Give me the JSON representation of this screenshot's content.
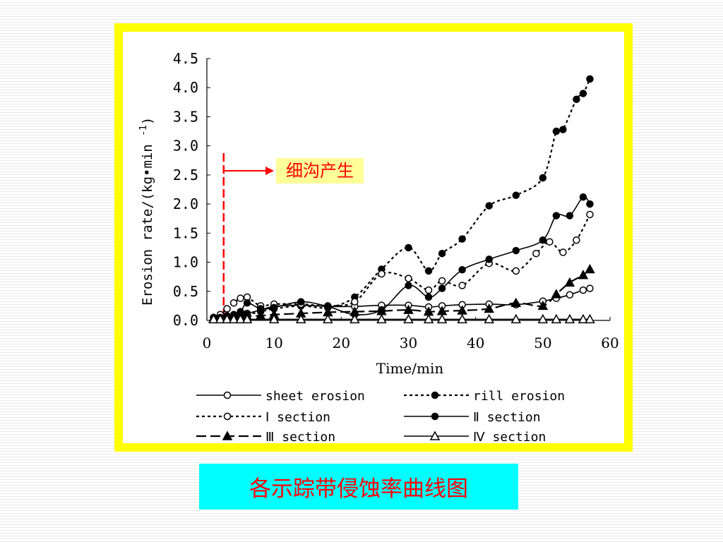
{
  "colors": {
    "frame": "#ffff00",
    "annotation": "#ff0000",
    "annotation_box": "#ffff99",
    "caption_bg": "#00ffff",
    "caption_text": "#ff0000"
  },
  "caption": "各示踪带侵蚀率曲线图",
  "chart_data": {
    "type": "line",
    "xlabel": "Time/min",
    "ylabel": "Erosion rate/(kg•min",
    "ylabel_sup": "-1",
    "ylabel_close": ")",
    "xlim": [
      0,
      60
    ],
    "ylim": [
      0,
      4.5
    ],
    "xticks": [
      "0",
      "10",
      "20",
      "30",
      "40",
      "50",
      "60"
    ],
    "yticks": [
      "0.0",
      "0.5",
      "1.0",
      "1.5",
      "2.0",
      "2.5",
      "3.0",
      "3.5",
      "4.0",
      "4.5"
    ],
    "grid": false,
    "legend_position": "bottom",
    "annotation": {
      "text": "细沟产生",
      "x": 2.5
    },
    "series": [
      {
        "name": "sheet erosion",
        "line": "solid",
        "marker": "open-circle",
        "x": [
          1,
          2,
          3,
          4,
          5,
          6,
          8,
          10,
          14,
          18,
          22,
          26,
          30,
          33,
          35,
          38,
          42,
          46,
          50,
          52,
          54,
          56,
          57
        ],
        "y": [
          0.05,
          0.05,
          0.06,
          0.08,
          0.1,
          0.12,
          0.18,
          0.24,
          0.26,
          0.24,
          0.24,
          0.26,
          0.26,
          0.23,
          0.25,
          0.27,
          0.28,
          0.27,
          0.33,
          0.38,
          0.44,
          0.52,
          0.55
        ]
      },
      {
        "name": "rill erosion",
        "line": "dotted",
        "marker": "filled-circle",
        "x": [
          1,
          2,
          3,
          4,
          5,
          6,
          8,
          10,
          14,
          18,
          22,
          26,
          30,
          33,
          35,
          38,
          42,
          46,
          50,
          52,
          53,
          55,
          56,
          57
        ],
        "y": [
          0.02,
          0.02,
          0.03,
          0.05,
          0.08,
          0.1,
          0.15,
          0.2,
          0.25,
          0.22,
          0.4,
          0.88,
          1.25,
          0.85,
          1.15,
          1.4,
          1.97,
          2.15,
          2.45,
          3.25,
          3.28,
          3.8,
          3.9,
          4.15
        ]
      },
      {
        "name": "Ⅰ section",
        "line": "dotted",
        "marker": "open-circle",
        "x": [
          1,
          2,
          3,
          4,
          5,
          6,
          8,
          10,
          14,
          18,
          22,
          26,
          30,
          33,
          35,
          38,
          42,
          46,
          49,
          51,
          53,
          55,
          57
        ],
        "y": [
          0.05,
          0.1,
          0.2,
          0.3,
          0.38,
          0.4,
          0.25,
          0.28,
          0.28,
          0.25,
          0.32,
          0.8,
          0.72,
          0.52,
          0.68,
          0.6,
          0.98,
          0.85,
          1.15,
          1.35,
          1.17,
          1.38,
          1.82
        ]
      },
      {
        "name": "Ⅱ section",
        "line": "solid",
        "marker": "filled-circle",
        "x": [
          1,
          2,
          3,
          4,
          5,
          6,
          8,
          10,
          14,
          18,
          22,
          26,
          30,
          33,
          35,
          38,
          42,
          46,
          50,
          52,
          54,
          56,
          57
        ],
        "y": [
          0.05,
          0.05,
          0.08,
          0.1,
          0.15,
          0.3,
          0.2,
          0.22,
          0.32,
          0.24,
          0.1,
          0.18,
          0.6,
          0.4,
          0.55,
          0.87,
          1.05,
          1.2,
          1.38,
          1.8,
          1.8,
          2.12,
          2.0
        ]
      },
      {
        "name": "Ⅲ section",
        "line": "dashed",
        "marker": "filled-triangle",
        "x": [
          1,
          2,
          3,
          4,
          5,
          6,
          8,
          10,
          14,
          18,
          22,
          26,
          30,
          33,
          35,
          38,
          42,
          46,
          50,
          52,
          54,
          56,
          57
        ],
        "y": [
          0.03,
          0.03,
          0.04,
          0.05,
          0.06,
          0.07,
          0.08,
          0.1,
          0.12,
          0.14,
          0.15,
          0.16,
          0.18,
          0.15,
          0.16,
          0.17,
          0.2,
          0.3,
          0.25,
          0.45,
          0.65,
          0.78,
          0.88
        ]
      },
      {
        "name": "Ⅳ section",
        "line": "solid",
        "marker": "open-triangle",
        "x": [
          1,
          2,
          3,
          4,
          5,
          6,
          10,
          14,
          18,
          22,
          26,
          30,
          33,
          35,
          38,
          42,
          46,
          50,
          52,
          54,
          56,
          57
        ],
        "y": [
          0.02,
          0.02,
          0.02,
          0.02,
          0.02,
          0.02,
          0.02,
          0.02,
          0.02,
          0.02,
          0.02,
          0.02,
          0.02,
          0.02,
          0.02,
          0.02,
          0.02,
          0.02,
          0.02,
          0.02,
          0.02,
          0.02
        ]
      }
    ]
  }
}
